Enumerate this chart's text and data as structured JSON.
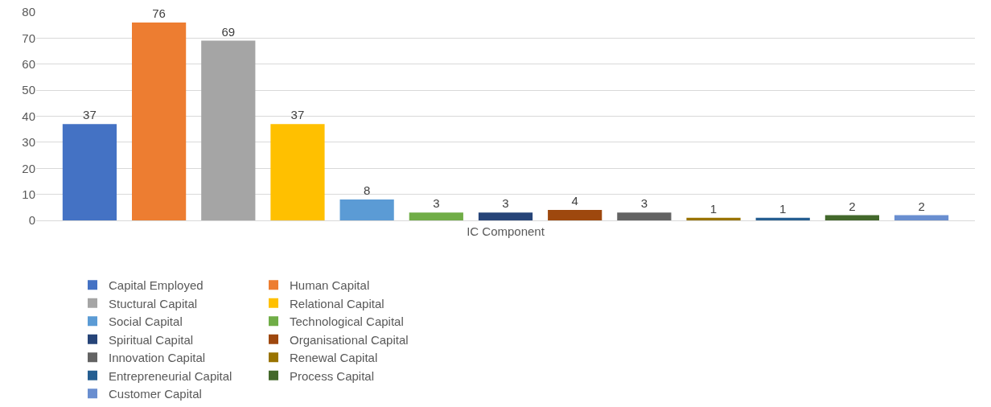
{
  "chart_data": {
    "type": "bar",
    "categories": [
      "IC Component"
    ],
    "ylim": [
      0,
      80
    ],
    "yticks": [
      0,
      10,
      20,
      30,
      40,
      50,
      60,
      70,
      80
    ],
    "grid": "y",
    "legend": "bottom",
    "data_labels": true,
    "series": [
      {
        "name": "Capital Employed",
        "color": "#4472c4",
        "values": [
          37
        ]
      },
      {
        "name": "Human Capital",
        "color": "#ed7d31",
        "values": [
          76
        ]
      },
      {
        "name": "Stuctural Capital",
        "color": "#a5a5a5",
        "values": [
          69
        ]
      },
      {
        "name": "Relational Capital",
        "color": "#ffc000",
        "values": [
          37
        ]
      },
      {
        "name": "Social Capital",
        "color": "#5b9bd5",
        "values": [
          8
        ]
      },
      {
        "name": "Technological Capital",
        "color": "#70ad47",
        "values": [
          3
        ]
      },
      {
        "name": "Spiritual Capital",
        "color": "#264478",
        "values": [
          3
        ]
      },
      {
        "name": "Organisational Capital",
        "color": "#9e480e",
        "values": [
          4
        ]
      },
      {
        "name": "Innovation Capital",
        "color": "#636363",
        "values": [
          3
        ]
      },
      {
        "name": "Renewal Capital",
        "color": "#997300",
        "values": [
          1
        ]
      },
      {
        "name": "Entrepreneurial Capital",
        "color": "#255e91",
        "values": [
          1
        ]
      },
      {
        "name": "Process Capital",
        "color": "#43682b",
        "values": [
          2
        ]
      },
      {
        "name": "Customer Capital",
        "color": "#698ed0",
        "values": [
          2
        ]
      }
    ]
  }
}
